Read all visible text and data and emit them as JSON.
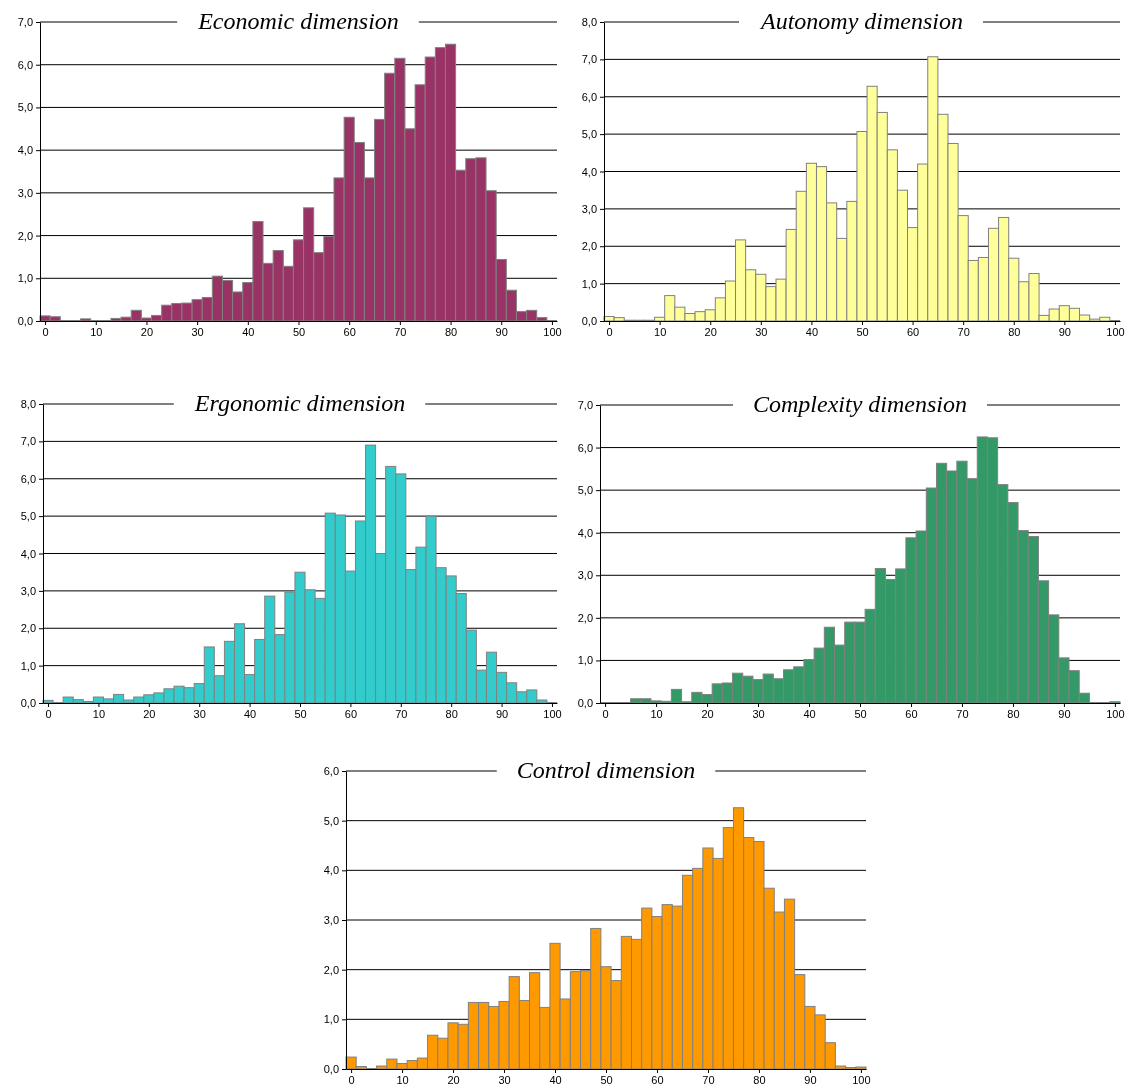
{
  "chart_data": [
    {
      "type": "bar",
      "title": "Economic dimension",
      "x": [
        0,
        2,
        4,
        6,
        8,
        10,
        12,
        14,
        16,
        18,
        20,
        22,
        24,
        26,
        28,
        30,
        32,
        34,
        36,
        38,
        40,
        42,
        44,
        46,
        48,
        50,
        52,
        54,
        56,
        58,
        60,
        62,
        64,
        66,
        68,
        70,
        72,
        74,
        76,
        78,
        80,
        82,
        84,
        86,
        88,
        90,
        92,
        94,
        96,
        98,
        100
      ],
      "values": [
        0.12,
        0.1,
        0,
        0,
        0.05,
        0,
        0,
        0.06,
        0.09,
        0.25,
        0.07,
        0.13,
        0.37,
        0.41,
        0.42,
        0.5,
        0.55,
        1.05,
        0.95,
        0.68,
        0.9,
        2.33,
        1.35,
        1.65,
        1.28,
        1.9,
        2.65,
        1.6,
        1.98,
        3.35,
        4.77,
        4.18,
        3.35,
        4.72,
        5.8,
        6.15,
        4.5,
        5.53,
        6.18,
        6.4,
        6.48,
        3.53,
        3.8,
        3.82,
        3.05,
        1.44,
        0.72,
        0.22,
        0.25,
        0.08,
        0
      ],
      "color": "#993366",
      "xlim": [
        -1,
        101
      ],
      "xticks": [
        0,
        10,
        20,
        30,
        40,
        50,
        60,
        70,
        80,
        90,
        100
      ],
      "ylim": [
        0,
        7
      ],
      "yticks": [
        {
          "value": 0,
          "label": "0,0"
        },
        {
          "value": 1,
          "label": "1,0"
        },
        {
          "value": 2,
          "label": "2,0"
        },
        {
          "value": 3,
          "label": "3,0"
        },
        {
          "value": 4,
          "label": "4,0"
        },
        {
          "value": 5,
          "label": "5,0"
        },
        {
          "value": 6,
          "label": "6,0"
        },
        {
          "value": 7,
          "label": "7,0"
        }
      ],
      "grid": "y"
    },
    {
      "type": "bar",
      "title": "Autonomy dimension",
      "x": [
        0,
        2,
        4,
        6,
        8,
        10,
        12,
        14,
        16,
        18,
        20,
        22,
        24,
        26,
        28,
        30,
        32,
        34,
        36,
        38,
        40,
        42,
        44,
        46,
        48,
        50,
        52,
        54,
        56,
        58,
        60,
        62,
        64,
        66,
        68,
        70,
        72,
        74,
        76,
        78,
        80,
        82,
        84,
        86,
        88,
        90,
        92,
        94,
        96,
        98,
        100
      ],
      "values": [
        0.12,
        0.09,
        0.02,
        0.02,
        0.02,
        0.1,
        0.68,
        0.37,
        0.2,
        0.25,
        0.3,
        0.62,
        1.07,
        2.17,
        1.37,
        1.25,
        0.92,
        1.12,
        2.45,
        3.47,
        4.22,
        4.13,
        3.16,
        2.21,
        3.2,
        5.07,
        6.28,
        5.58,
        4.58,
        3.5,
        2.5,
        4.2,
        7.07,
        5.53,
        4.75,
        2.82,
        1.62,
        1.7,
        2.48,
        2.77,
        1.68,
        1.05,
        1.27,
        0.15,
        0.32,
        0.41,
        0.34,
        0.16,
        0.05,
        0.1,
        0
      ],
      "color": "#ffff99",
      "xlim": [
        -1,
        101
      ],
      "xticks": [
        0,
        10,
        20,
        30,
        40,
        50,
        60,
        70,
        80,
        90,
        100
      ],
      "ylim": [
        0,
        8
      ],
      "yticks": [
        {
          "value": 0,
          "label": "0,0"
        },
        {
          "value": 1,
          "label": "1,0"
        },
        {
          "value": 2,
          "label": "2,0"
        },
        {
          "value": 3,
          "label": "3,0"
        },
        {
          "value": 4,
          "label": "4,0"
        },
        {
          "value": 5,
          "label": "5,0"
        },
        {
          "value": 6,
          "label": "6,0"
        },
        {
          "value": 7,
          "label": "7,0"
        },
        {
          "value": 8,
          "label": "8,0"
        }
      ],
      "grid": "y"
    },
    {
      "type": "bar",
      "title": "Ergonomic dimension",
      "x": [
        0,
        2,
        4,
        6,
        8,
        10,
        12,
        14,
        16,
        18,
        20,
        22,
        24,
        26,
        28,
        30,
        32,
        34,
        36,
        38,
        40,
        42,
        44,
        46,
        48,
        50,
        52,
        54,
        56,
        58,
        60,
        62,
        64,
        66,
        68,
        70,
        72,
        74,
        76,
        78,
        80,
        82,
        84,
        86,
        88,
        90,
        92,
        94,
        96,
        98,
        100
      ],
      "values": [
        0.07,
        0,
        0.16,
        0.09,
        0.04,
        0.16,
        0.11,
        0.23,
        0.08,
        0.16,
        0.22,
        0.27,
        0.38,
        0.45,
        0.41,
        0.52,
        1.5,
        0.73,
        1.65,
        2.12,
        0.76,
        1.7,
        2.86,
        1.83,
        2.97,
        3.5,
        3.03,
        2.8,
        5.08,
        5.03,
        3.53,
        4.87,
        6.9,
        4.0,
        6.33,
        6.13,
        3.57,
        4.17,
        5.0,
        3.62,
        3.4,
        2.93,
        1.95,
        0.88,
        1.36,
        0.82,
        0.54,
        0.3,
        0.35,
        0.08,
        0
      ],
      "color": "#33cccc",
      "xlim": [
        -1,
        101
      ],
      "xticks": [
        0,
        10,
        20,
        30,
        40,
        50,
        60,
        70,
        80,
        90,
        100
      ],
      "ylim": [
        0,
        8
      ],
      "yticks": [
        {
          "value": 0,
          "label": "0,0"
        },
        {
          "value": 1,
          "label": "1,0"
        },
        {
          "value": 2,
          "label": "2,0"
        },
        {
          "value": 3,
          "label": "3,0"
        },
        {
          "value": 4,
          "label": "4,0"
        },
        {
          "value": 5,
          "label": "5,0"
        },
        {
          "value": 6,
          "label": "6,0"
        },
        {
          "value": 7,
          "label": "7,0"
        },
        {
          "value": 8,
          "label": "8,0"
        }
      ],
      "grid": "y"
    },
    {
      "type": "bar",
      "title": "Complexity dimension",
      "x": [
        0,
        2,
        4,
        6,
        8,
        10,
        12,
        14,
        16,
        18,
        20,
        22,
        24,
        26,
        28,
        30,
        32,
        34,
        36,
        38,
        40,
        42,
        44,
        46,
        48,
        50,
        52,
        54,
        56,
        58,
        60,
        62,
        64,
        66,
        68,
        70,
        72,
        74,
        76,
        78,
        80,
        82,
        84,
        86,
        88,
        90,
        92,
        94,
        96,
        98,
        100
      ],
      "values": [
        0,
        0.01,
        0,
        0.1,
        0.1,
        0.05,
        0.04,
        0.32,
        0.03,
        0.25,
        0.2,
        0.45,
        0.47,
        0.7,
        0.63,
        0.55,
        0.68,
        0.57,
        0.78,
        0.85,
        1.02,
        1.29,
        1.78,
        1.36,
        1.9,
        1.9,
        2.2,
        3.16,
        2.9,
        3.15,
        3.88,
        4.04,
        5.05,
        5.63,
        5.45,
        5.68,
        5.27,
        6.25,
        6.23,
        5.13,
        4.71,
        4.05,
        3.91,
        2.87,
        2.07,
        1.06,
        0.76,
        0.23,
        0,
        0,
        0.03
      ],
      "color": "#339966",
      "xlim": [
        -1,
        101
      ],
      "xticks": [
        0,
        10,
        20,
        30,
        40,
        50,
        60,
        70,
        80,
        90,
        100
      ],
      "ylim": [
        0,
        7
      ],
      "yticks": [
        {
          "value": 0,
          "label": "0,0"
        },
        {
          "value": 1,
          "label": "1,0"
        },
        {
          "value": 2,
          "label": "2,0"
        },
        {
          "value": 3,
          "label": "3,0"
        },
        {
          "value": 4,
          "label": "4,0"
        },
        {
          "value": 5,
          "label": "5,0"
        },
        {
          "value": 6,
          "label": "6,0"
        },
        {
          "value": 7,
          "label": "7,0"
        }
      ],
      "grid": "y"
    },
    {
      "type": "bar",
      "title": "Control dimension",
      "x": [
        0,
        2,
        4,
        6,
        8,
        10,
        12,
        14,
        16,
        18,
        20,
        22,
        24,
        26,
        28,
        30,
        32,
        34,
        36,
        38,
        40,
        42,
        44,
        46,
        48,
        50,
        52,
        54,
        56,
        58,
        60,
        62,
        64,
        66,
        68,
        70,
        72,
        74,
        76,
        78,
        80,
        82,
        84,
        86,
        88,
        90,
        92,
        94,
        96,
        98,
        100
      ],
      "values": [
        0.24,
        0.05,
        0,
        0.06,
        0.2,
        0.11,
        0.17,
        0.22,
        0.68,
        0.62,
        0.93,
        0.9,
        1.34,
        1.34,
        1.26,
        1.36,
        1.86,
        1.38,
        1.94,
        1.24,
        2.53,
        1.41,
        1.96,
        1.98,
        2.83,
        2.06,
        1.78,
        2.67,
        2.61,
        3.24,
        3.07,
        3.31,
        3.28,
        3.9,
        4.04,
        4.45,
        4.24,
        4.86,
        5.26,
        4.66,
        4.58,
        3.64,
        3.16,
        3.42,
        1.9,
        1.26,
        1.09,
        0.53,
        0.06,
        0.03,
        0.04
      ],
      "color": "#ff9900",
      "xlim": [
        -1,
        101
      ],
      "xticks": [
        0,
        10,
        20,
        30,
        40,
        50,
        60,
        70,
        80,
        90,
        100
      ],
      "ylim": [
        0,
        6
      ],
      "yticks": [
        {
          "value": 0,
          "label": "0,0"
        },
        {
          "value": 1,
          "label": "1,0"
        },
        {
          "value": 2,
          "label": "2,0"
        },
        {
          "value": 3,
          "label": "3,0"
        },
        {
          "value": 4,
          "label": "4,0"
        },
        {
          "value": 5,
          "label": "5,0"
        },
        {
          "value": 6,
          "label": "6,0"
        }
      ],
      "grid": "y"
    }
  ]
}
